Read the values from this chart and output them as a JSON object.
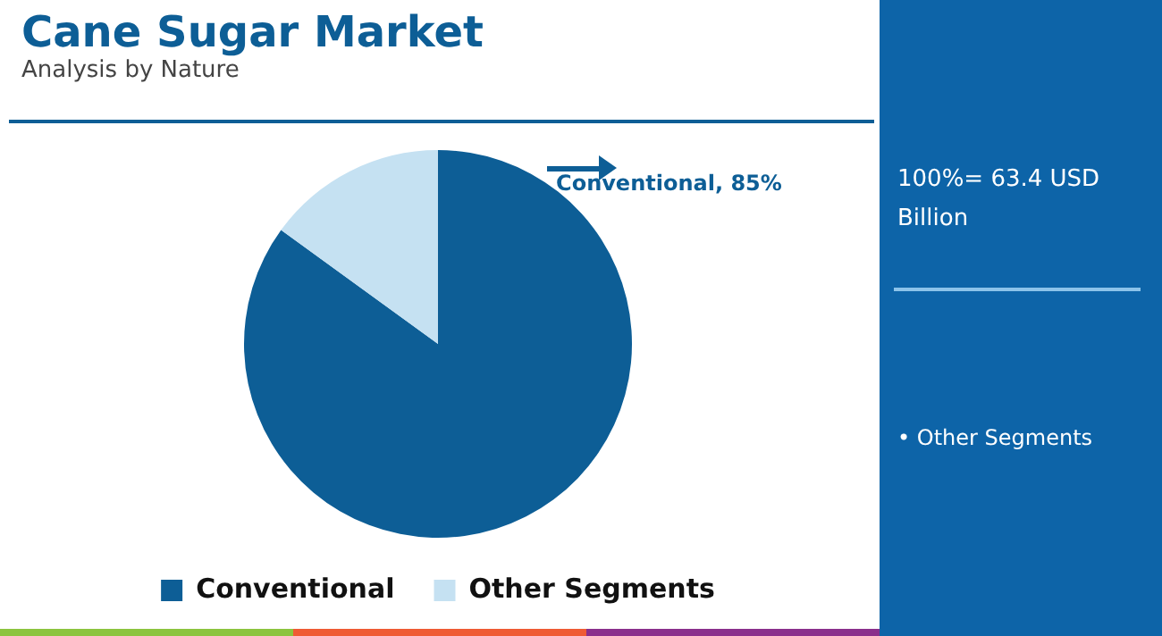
{
  "chart_data": {
    "type": "pie",
    "title": "Cane Sugar Market",
    "subtitle": "Analysis by Nature",
    "categories": [
      "Conventional",
      "Other Segments"
    ],
    "values": [
      85,
      15
    ],
    "colors": [
      "#0d5e96",
      "#c5e1f2"
    ],
    "value_labels": [
      "Conventional, 85%",
      null
    ],
    "legend": "bottom",
    "annotations": [
      "100%= 63.4 USD Billion",
      "• Other Segments"
    ]
  }
}
